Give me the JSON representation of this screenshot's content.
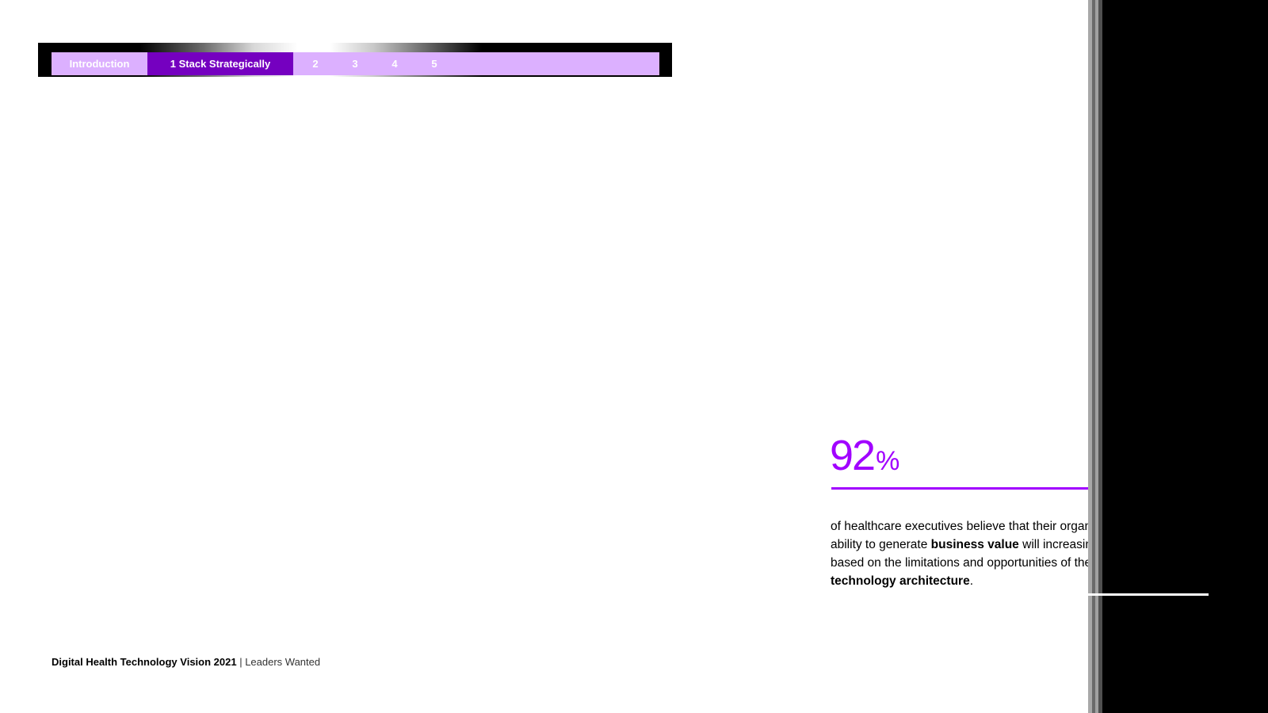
{
  "nav": {
    "tabs": [
      {
        "label": "Introduction"
      },
      {
        "label": "1 Stack Strategically"
      },
      {
        "label": "2"
      },
      {
        "label": "3"
      },
      {
        "label": "4"
      },
      {
        "label": "5"
      }
    ],
    "active_index": 1
  },
  "stat": {
    "value": "92",
    "unit": "%",
    "text_part1": "of healthcare executives believe that their organization’s ability to generate ",
    "bold1": "business value",
    "text_part2": " will increasingly be based on the limitations and opportunities of their ",
    "bold2": "technology architecture",
    "text_part3": "."
  },
  "footer": {
    "title": "Digital Health Technology Vision 2021",
    "separator": " | ",
    "subtitle": "Leaders Wanted"
  },
  "colors": {
    "accent": "#a100ff",
    "active_tab": "#7500c0",
    "tab_bar": "#dcb0ff"
  }
}
